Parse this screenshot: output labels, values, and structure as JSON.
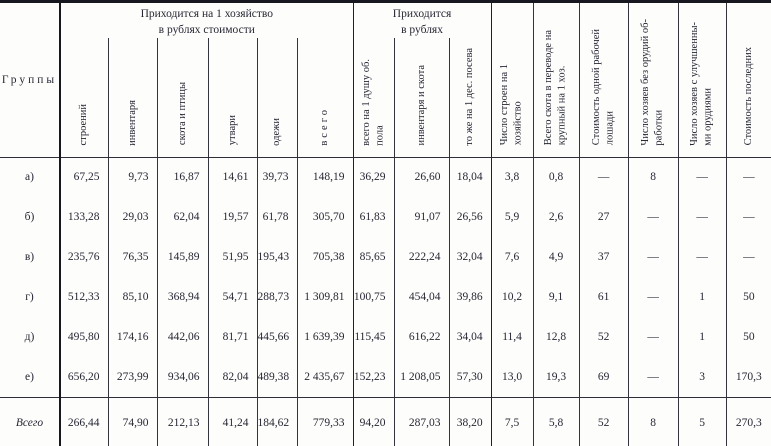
{
  "table": {
    "corner_label": "Группы",
    "groups": [
      {
        "title": "Приходится на 1 хозяйство\nв рублях стоимости",
        "columns": [
          "строений",
          "инвентаря",
          "скота и птицы",
          "утвари",
          "одежи",
          "всего"
        ]
      },
      {
        "title": "Приходится\nв рублях",
        "columns": [
          "всего на 1 душу об.\nпола",
          "инвентаря и скота",
          "то же на 1 дес. посева"
        ]
      }
    ],
    "single_columns": [
      "Число строен на 1\nхозяйство",
      "Всего скота в переводе на\nкрупный на 1 хоз.",
      "Стоимость одной рабочей\nлошади",
      "Число хозяев без орудий об-\nработки",
      "Число хозяев с улучшенны-\nми орудиями",
      "Стоимость последних"
    ],
    "rows": [
      {
        "label": "а)",
        "emphasis": false,
        "cells": [
          "67,25",
          "9,73",
          "16,87",
          "14,61",
          "39,73",
          "148,19",
          "36,29",
          "26,60",
          "18,04",
          "3,8",
          "0,8",
          "—",
          "8",
          "—",
          "—"
        ]
      },
      {
        "label": "б)",
        "emphasis": false,
        "cells": [
          "133,28",
          "29,03",
          "62,04",
          "19,57",
          "61,78",
          "305,70",
          "61,83",
          "91,07",
          "26,56",
          "5,9",
          "2,6",
          "27",
          "—",
          "—",
          "—"
        ]
      },
      {
        "label": "в)",
        "emphasis": false,
        "cells": [
          "235,76",
          "76,35",
          "145,89",
          "51,95",
          "195,43",
          "705,38",
          "85,65",
          "222,24",
          "32,04",
          "7,6",
          "4,9",
          "37",
          "—",
          "—",
          "—"
        ]
      },
      {
        "label": "г)",
        "emphasis": false,
        "cells": [
          "512,33",
          "85,10",
          "368,94",
          "54,71",
          "288,73",
          "1 309,81",
          "100,75",
          "454,04",
          "39,86",
          "10,2",
          "9,1",
          "61",
          "—",
          "1",
          "50"
        ]
      },
      {
        "label": "д)",
        "emphasis": false,
        "cells": [
          "495,80",
          "174,16",
          "442,06",
          "81,71",
          "445,66",
          "1 639,39",
          "115,45",
          "616,22",
          "34,04",
          "11,4",
          "12,8",
          "52",
          "—",
          "1",
          "50"
        ]
      },
      {
        "label": "е)",
        "emphasis": false,
        "cells": [
          "656,20",
          "273,99",
          "934,06",
          "82,04",
          "489,38",
          "2 435,67",
          "152,23",
          "1 208,05",
          "57,30",
          "13,0",
          "19,3",
          "69",
          "—",
          "3",
          "170,3"
        ]
      },
      {
        "label": "Всего",
        "emphasis": true,
        "cells": [
          "266,44",
          "74,90",
          "212,13",
          "41,24",
          "184,62",
          "779,33",
          "94,20",
          "287,03",
          "38,20",
          "7,5",
          "5,8",
          "52",
          "8",
          "5",
          "270,3"
        ]
      }
    ]
  }
}
